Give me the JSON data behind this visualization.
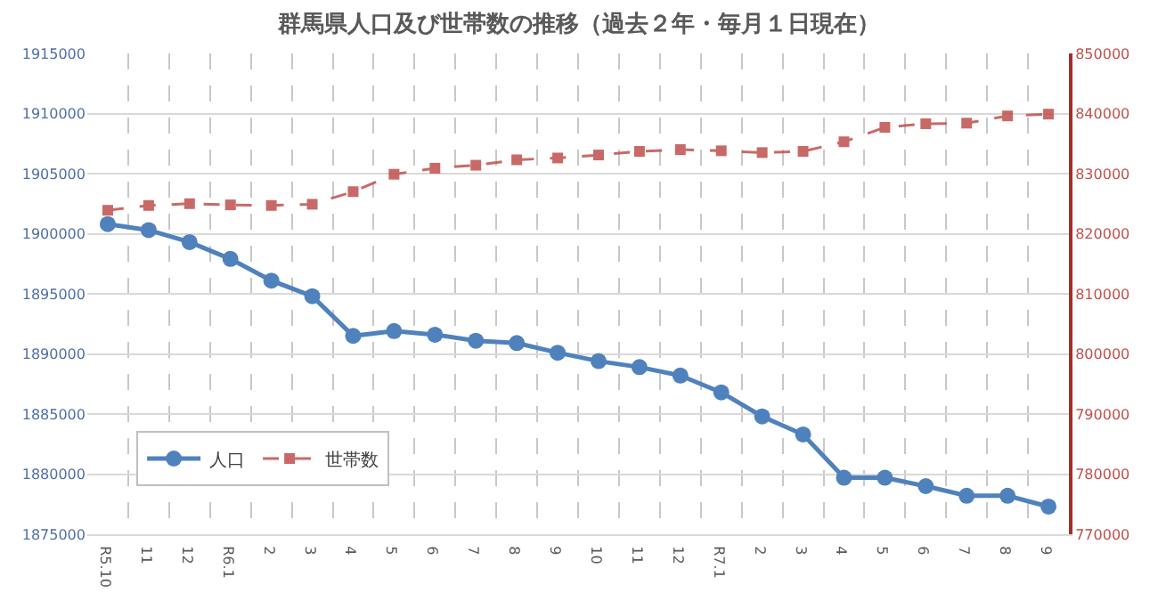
{
  "chart_data": {
    "type": "line",
    "title": "群馬県人口及び世帯数の推移（過去２年・毎月１日現在）",
    "categories": [
      "R5.10",
      "11",
      "12",
      "R6.1",
      "2",
      "3",
      "4",
      "5",
      "6",
      "7",
      "8",
      "9",
      "10",
      "11",
      "12",
      "R7.1",
      "2",
      "3",
      "4",
      "5",
      "6",
      "7",
      "8",
      "9"
    ],
    "series": [
      {
        "name": "人口",
        "color": "#4f81bd",
        "marker": "circle",
        "line_style": "solid",
        "values": [
          1900800,
          1900300,
          1899300,
          1897900,
          1896100,
          1894800,
          1891500,
          1891900,
          1891600,
          1891100,
          1890900,
          1890100,
          1889400,
          1888900,
          1888200,
          1886800,
          1884800,
          1883300,
          1879700,
          1879700,
          1879000,
          1878200,
          1878200,
          1877300
        ]
      },
      {
        "name": "世帯数",
        "color": "#c0504d",
        "marker": "square",
        "line_style": "dashed",
        "axis": "y2",
        "values": [
          823900,
          824700,
          825000,
          824800,
          824700,
          824900,
          827000,
          829900,
          830900,
          831400,
          832300,
          832600,
          833100,
          833700,
          834000,
          833800,
          833500,
          833700,
          835300,
          837700,
          838300,
          838400,
          839600,
          839900
        ]
      }
    ],
    "ylim": [
      1875000,
      1915000
    ],
    "yticks": [
      1875000,
      1880000,
      1885000,
      1890000,
      1895000,
      1900000,
      1905000,
      1910000,
      1915000
    ],
    "y2lim": [
      770000,
      850000
    ],
    "y2ticks": [
      770000,
      780000,
      790000,
      800000,
      810000,
      820000,
      830000,
      840000,
      850000
    ],
    "grid": true,
    "legend": "bottom left"
  }
}
